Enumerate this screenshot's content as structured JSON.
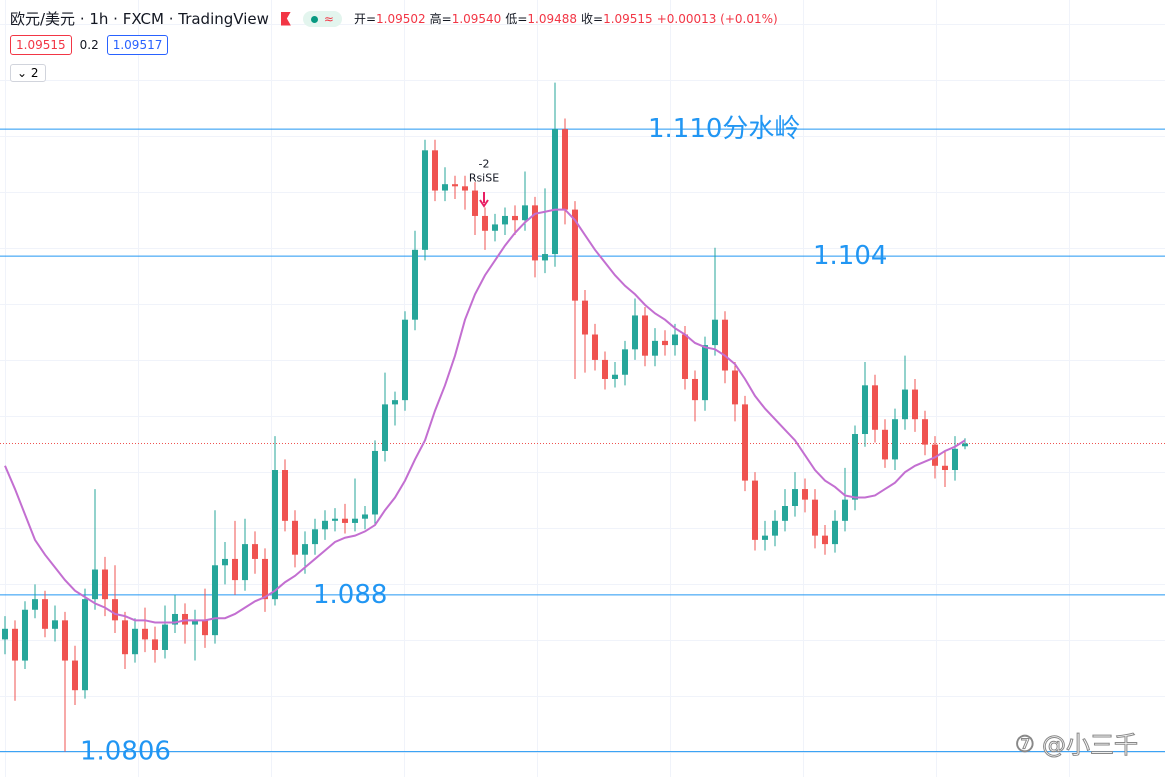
{
  "header": {
    "title": "欧元/美元 · 1h · FXCM · TradingView",
    "legend": [
      {
        "label": "开=",
        "value": "1.09502"
      },
      {
        "label": "高=",
        "value": "1.09540"
      },
      {
        "label": "低=",
        "value": "1.09488"
      },
      {
        "label": "收=",
        "value": "1.09515"
      },
      {
        "label": "",
        "value": "+0.00013 (+0.01%)"
      }
    ],
    "sell": "1.09515",
    "spread": "0.2",
    "buy": "1.09517",
    "collapsed": "2"
  },
  "watermark": "@小三千",
  "chart_data": {
    "type": "candlestick",
    "ylim": [
      1.0794,
      1.1161
    ],
    "up_color": "#26a69a",
    "down_color": "#ef5350",
    "ohlc": [
      [
        1.0859,
        1.087,
        1.0852,
        1.0864
      ],
      [
        1.0864,
        1.0868,
        1.083,
        1.0849
      ],
      [
        1.0849,
        1.0877,
        1.0845,
        1.0873
      ],
      [
        1.0873,
        1.0885,
        1.0869,
        1.0878
      ],
      [
        1.0878,
        1.0882,
        1.086,
        1.0864
      ],
      [
        1.0864,
        1.0875,
        1.0858,
        1.0868
      ],
      [
        1.0868,
        1.0872,
        1.0806,
        1.0849
      ],
      [
        1.0849,
        1.0856,
        1.0828,
        1.0835
      ],
      [
        1.0835,
        1.0883,
        1.0831,
        1.0878
      ],
      [
        1.0878,
        1.093,
        1.0873,
        1.0892
      ],
      [
        1.0892,
        1.0898,
        1.087,
        1.0878
      ],
      [
        1.0878,
        1.0894,
        1.0862,
        1.0868
      ],
      [
        1.0868,
        1.0872,
        1.0845,
        1.0852
      ],
      [
        1.0852,
        1.0869,
        1.0848,
        1.0864
      ],
      [
        1.0864,
        1.0874,
        1.0853,
        1.0859
      ],
      [
        1.0859,
        1.0865,
        1.0848,
        1.0854
      ],
      [
        1.0854,
        1.0875,
        1.085,
        1.0866
      ],
      [
        1.0866,
        1.088,
        1.0862,
        1.0871
      ],
      [
        1.0871,
        1.0876,
        1.0857,
        1.0866
      ],
      [
        1.0866,
        1.0873,
        1.0849,
        1.0868
      ],
      [
        1.0868,
        1.0883,
        1.0855,
        1.0861
      ],
      [
        1.0861,
        1.092,
        1.0857,
        1.0894
      ],
      [
        1.0894,
        1.0905,
        1.0885,
        1.0897
      ],
      [
        1.0897,
        1.0915,
        1.088,
        1.0887
      ],
      [
        1.0887,
        1.0916,
        1.0882,
        1.0904
      ],
      [
        1.0904,
        1.091,
        1.089,
        1.0897
      ],
      [
        1.0897,
        1.0902,
        1.0872,
        1.0878
      ],
      [
        1.0878,
        1.0955,
        1.0875,
        1.0939
      ],
      [
        1.0939,
        1.0944,
        1.091,
        1.0915
      ],
      [
        1.0915,
        1.092,
        1.0893,
        1.0899
      ],
      [
        1.0899,
        1.091,
        1.089,
        1.0904
      ],
      [
        1.0904,
        1.0916,
        1.0899,
        1.0911
      ],
      [
        1.0911,
        1.092,
        1.0906,
        1.0915
      ],
      [
        1.0915,
        1.0921,
        1.091,
        1.0916
      ],
      [
        1.0916,
        1.0923,
        1.0909,
        1.0914
      ],
      [
        1.0914,
        1.0935,
        1.091,
        1.0916
      ],
      [
        1.0916,
        1.0922,
        1.0911,
        1.0918
      ],
      [
        1.0918,
        1.0953,
        1.0913,
        1.0948
      ],
      [
        1.0948,
        1.0985,
        1.0943,
        1.097
      ],
      [
        1.097,
        1.0976,
        1.096,
        1.0972
      ],
      [
        1.0972,
        1.1014,
        1.0967,
        1.101
      ],
      [
        1.101,
        1.1052,
        1.1005,
        1.1043
      ],
      [
        1.1043,
        1.1095,
        1.1038,
        1.109
      ],
      [
        1.109,
        1.1095,
        1.1066,
        1.1071
      ],
      [
        1.1071,
        1.1082,
        1.1066,
        1.1074
      ],
      [
        1.1074,
        1.1078,
        1.1067,
        1.1073
      ],
      [
        1.1073,
        1.1078,
        1.1062,
        1.1071
      ],
      [
        1.1071,
        1.1075,
        1.105,
        1.1059
      ],
      [
        1.1059,
        1.1063,
        1.1043,
        1.1052
      ],
      [
        1.1052,
        1.106,
        1.1047,
        1.1055
      ],
      [
        1.1055,
        1.1063,
        1.105,
        1.1059
      ],
      [
        1.1059,
        1.1064,
        1.105,
        1.1057
      ],
      [
        1.1057,
        1.108,
        1.1052,
        1.1064
      ],
      [
        1.1064,
        1.1068,
        1.103,
        1.1038
      ],
      [
        1.1038,
        1.1072,
        1.1032,
        1.1041
      ],
      [
        1.1041,
        1.1122,
        1.1035,
        1.11
      ],
      [
        1.11,
        1.1105,
        1.1055,
        1.1062
      ],
      [
        1.1062,
        1.1066,
        1.0982,
        1.1019
      ],
      [
        1.1019,
        1.1024,
        1.0985,
        1.1003
      ],
      [
        1.1003,
        1.1008,
        1.0986,
        1.0991
      ],
      [
        1.0991,
        1.0995,
        1.0977,
        1.0982
      ],
      [
        1.0982,
        1.099,
        1.0978,
        1.0984
      ],
      [
        1.0984,
        1.1,
        1.0979,
        1.0996
      ],
      [
        1.0996,
        1.102,
        1.0991,
        1.1012
      ],
      [
        1.1012,
        1.1016,
        1.0988,
        1.0993
      ],
      [
        1.0993,
        1.1006,
        1.0988,
        1.1
      ],
      [
        1.1,
        1.1005,
        1.0993,
        1.0998
      ],
      [
        1.0998,
        1.1008,
        1.0993,
        1.1003
      ],
      [
        1.1003,
        1.1007,
        1.0977,
        1.0982
      ],
      [
        1.0982,
        1.0986,
        1.0962,
        1.0972
      ],
      [
        1.0972,
        1.1002,
        1.0967,
        1.0998
      ],
      [
        1.0998,
        1.1044,
        1.0993,
        1.101
      ],
      [
        1.101,
        1.1014,
        1.098,
        1.0986
      ],
      [
        1.0986,
        1.099,
        1.0962,
        1.097
      ],
      [
        1.097,
        1.0974,
        1.0929,
        1.0934
      ],
      [
        1.0934,
        1.0938,
        1.0901,
        1.0906
      ],
      [
        1.0906,
        1.0915,
        1.0901,
        1.0908
      ],
      [
        1.0908,
        1.092,
        1.0903,
        1.0915
      ],
      [
        1.0915,
        1.093,
        1.091,
        1.0922
      ],
      [
        1.0922,
        1.0938,
        1.0917,
        1.093
      ],
      [
        1.093,
        1.0935,
        1.0919,
        1.0925
      ],
      [
        1.0925,
        1.093,
        1.0902,
        1.0908
      ],
      [
        1.0908,
        1.0913,
        1.0899,
        1.0904
      ],
      [
        1.0904,
        1.092,
        1.09,
        1.0915
      ],
      [
        1.0915,
        1.094,
        1.091,
        1.0925
      ],
      [
        1.0925,
        1.096,
        1.092,
        1.0956
      ],
      [
        1.0956,
        1.099,
        1.095,
        1.0979
      ],
      [
        1.0979,
        1.0984,
        1.0952,
        1.0958
      ],
      [
        1.0958,
        1.0963,
        1.094,
        1.0944
      ],
      [
        1.0944,
        1.0968,
        1.0939,
        1.0963
      ],
      [
        1.0963,
        1.0993,
        1.0958,
        1.0977
      ],
      [
        1.0977,
        1.0982,
        1.0957,
        1.0963
      ],
      [
        1.0963,
        1.0967,
        1.0946,
        1.0951
      ],
      [
        1.0951,
        1.0955,
        1.0935,
        1.0941
      ],
      [
        1.0941,
        1.0948,
        1.0931,
        1.0939
      ],
      [
        1.0939,
        1.0955,
        1.0934,
        1.0949
      ],
      [
        1.09502,
        1.0954,
        1.09488,
        1.09515
      ]
    ],
    "ma": {
      "color": "#c36fd1",
      "values": [
        1.0941,
        1.093,
        1.0918,
        1.0906,
        1.0899,
        1.0893,
        1.0887,
        1.0882,
        1.0879,
        1.0876,
        1.0874,
        1.0871,
        1.087,
        1.0868,
        1.0868,
        1.0867,
        1.0867,
        1.0867,
        1.0868,
        1.0868,
        1.0868,
        1.0869,
        1.0869,
        1.0871,
        1.0874,
        1.0877,
        1.0879,
        1.0882,
        1.0886,
        1.0889,
        1.0893,
        1.0897,
        1.0901,
        1.0905,
        1.0907,
        1.0908,
        1.091,
        1.0913,
        1.092,
        1.0926,
        1.0934,
        1.0944,
        1.0953,
        1.0967,
        1.0979,
        1.0993,
        1.101,
        1.1022,
        1.1031,
        1.1038,
        1.1045,
        1.1051,
        1.1056,
        1.106,
        1.1061,
        1.1062,
        1.1062,
        1.1057,
        1.105,
        1.1043,
        1.1037,
        1.1031,
        1.1026,
        1.1022,
        1.1017,
        1.1013,
        1.101,
        1.1006,
        1.1003,
        1.0999,
        1.0997,
        1.0996,
        1.0993,
        1.0989,
        1.0982,
        1.0974,
        1.0968,
        1.0963,
        1.0958,
        1.0953,
        1.0946,
        1.0939,
        1.0934,
        1.0931,
        1.0927,
        1.0926,
        1.0926,
        1.0927,
        1.093,
        1.0933,
        1.0938,
        1.0941,
        1.0943,
        1.0945,
        1.0948,
        1.095,
        1.0953
      ]
    },
    "level_color": "#2196f3",
    "levels": [
      {
        "value": 1.11,
        "label": "1.110分水岭"
      },
      {
        "value": 1.104,
        "label": "1.104"
      },
      {
        "value": 1.088,
        "label": "1.088"
      },
      {
        "value": 1.0806,
        "label": "1.0806"
      }
    ],
    "signal": {
      "quantity": -2,
      "name": "RsiSE"
    }
  }
}
